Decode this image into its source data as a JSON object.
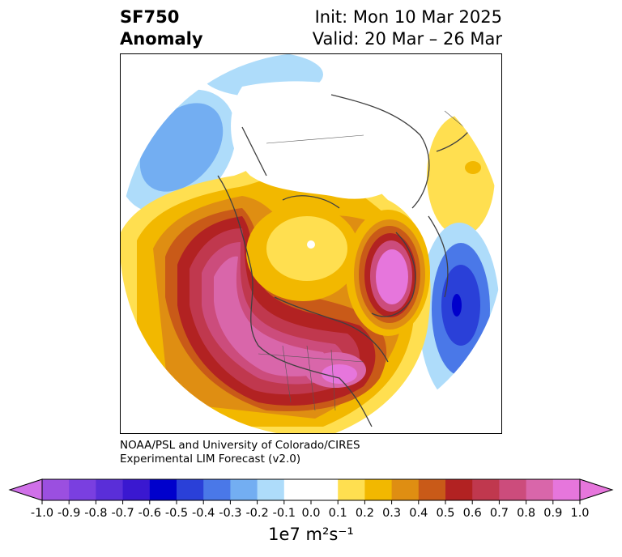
{
  "header": {
    "title_line1": "SF750",
    "title_line2": "Anomaly",
    "init": "Init: Mon 10 Mar 2025",
    "valid": "Valid: 20 Mar – 26 Mar"
  },
  "credit": {
    "line1": "NOAA/PSL and University of Colorado/CIRES",
    "line2": "Experimental LIM Forecast (v2.0)"
  },
  "colorbar": {
    "units": "1e7 m²s⁻¹",
    "tick_labels": [
      "-1.0",
      "-0.9",
      "-0.8",
      "-0.7",
      "-0.6",
      "-0.5",
      "-0.4",
      "-0.3",
      "-0.2",
      "-0.1",
      "0.0",
      "0.1",
      "0.2",
      "0.3",
      "0.4",
      "0.5",
      "0.6",
      "0.7",
      "0.8",
      "0.9",
      "1.0"
    ],
    "bins": [
      {
        "min": -1.0,
        "max": -0.9,
        "color": "#9b4fe0"
      },
      {
        "min": -0.9,
        "max": -0.8,
        "color": "#7a3fe0"
      },
      {
        "min": -0.8,
        "max": -0.7,
        "color": "#5a2ed8"
      },
      {
        "min": -0.7,
        "max": -0.6,
        "color": "#3a18d0"
      },
      {
        "min": -0.6,
        "max": -0.5,
        "color": "#0000cc"
      },
      {
        "min": -0.5,
        "max": -0.4,
        "color": "#2a40d8"
      },
      {
        "min": -0.4,
        "max": -0.3,
        "color": "#4a78e8"
      },
      {
        "min": -0.3,
        "max": -0.2,
        "color": "#73aef2"
      },
      {
        "min": -0.2,
        "max": -0.1,
        "color": "#aedcfa"
      },
      {
        "min": -0.1,
        "max": 0.0,
        "color": "#ffffff"
      },
      {
        "min": 0.0,
        "max": 0.1,
        "color": "#ffffff"
      },
      {
        "min": 0.1,
        "max": 0.2,
        "color": "#ffdf50"
      },
      {
        "min": 0.2,
        "max": 0.3,
        "color": "#f2b800"
      },
      {
        "min": 0.3,
        "max": 0.4,
        "color": "#df8e12"
      },
      {
        "min": 0.4,
        "max": 0.5,
        "color": "#c95a18"
      },
      {
        "min": 0.5,
        "max": 0.6,
        "color": "#b22222"
      },
      {
        "min": 0.6,
        "max": 0.7,
        "color": "#c0384e"
      },
      {
        "min": 0.7,
        "max": 0.8,
        "color": "#cc4c7c"
      },
      {
        "min": 0.8,
        "max": 0.9,
        "color": "#d966aa"
      },
      {
        "min": 0.9,
        "max": 1.0,
        "color": "#e676dc"
      }
    ],
    "extend_low_color": "#d070e8",
    "extend_high_color": "#e676dc"
  }
}
